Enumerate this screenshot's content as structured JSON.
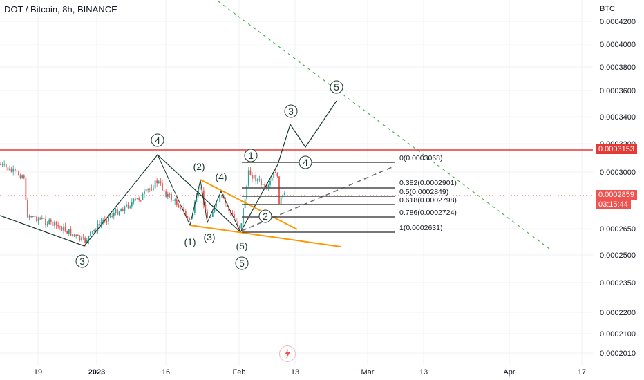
{
  "header": {
    "title": "DOT / Bitcoin, 8h, BINANCE",
    "unit": "BTC"
  },
  "price_labels": {
    "resistance": "0.0003153",
    "last_price": "0.0002859",
    "countdown": "03:15:44"
  },
  "colors": {
    "up_candle": "#26a69a",
    "down_candle": "#ef5350",
    "resistance": "#e53935",
    "wedge": "#ff9800",
    "wave_line": "#1b3a2e",
    "fib_line": "#4a4a4a",
    "channel": "#4caf50"
  },
  "chart_data": {
    "type": "candlestick",
    "y_axis": {
      "ticks": [
        "0.0004200",
        "0.0004000",
        "0.0003800",
        "0.0003600",
        "0.0003400",
        "0.0003200",
        "0.0003000",
        "0.0002650",
        "0.0002500",
        "0.0002350",
        "0.0002200",
        "0.0002100",
        "0.0002010"
      ],
      "scale": "log"
    },
    "x_axis": {
      "ticks": [
        "19",
        "2023",
        "16",
        "Feb",
        "13",
        "Mar",
        "13",
        "Apr",
        "17"
      ]
    },
    "resistance_level": 0.0003153,
    "last_price": 0.0002859,
    "fibonacci": [
      {
        "ratio": "0",
        "value": 0.0003068,
        "label": "0(0.0003068)"
      },
      {
        "ratio": "0.382",
        "value": 0.0002901,
        "label": "0.382(0.0002901)"
      },
      {
        "ratio": "0.5",
        "value": 0.0002849,
        "label": "0.5(0.0002849)"
      },
      {
        "ratio": "0.618",
        "value": 0.0002798,
        "label": "0.618(0.0002798)"
      },
      {
        "ratio": "0.786",
        "value": 0.0002724,
        "label": "0.786(0.0002724)"
      },
      {
        "ratio": "1",
        "value": 0.0002631,
        "label": "1(0.0002631)"
      }
    ],
    "wave_labels": {
      "circled": [
        "3",
        "4",
        "5",
        "1",
        "2",
        "3",
        "4",
        "5"
      ],
      "parenthesized": [
        "(1)",
        "(2)",
        "(3)",
        "(4)",
        "(5)"
      ]
    }
  }
}
